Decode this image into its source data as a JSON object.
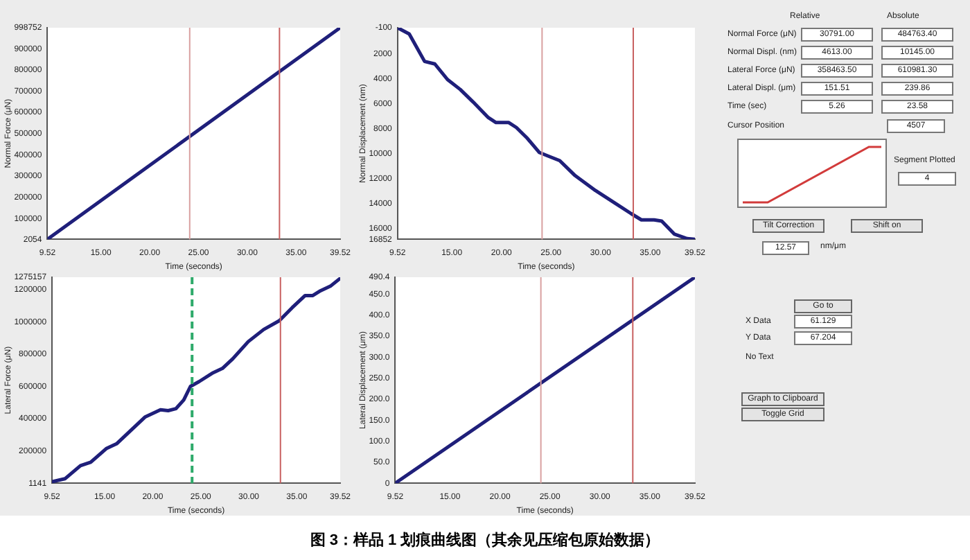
{
  "chart_data": [
    {
      "type": "line",
      "xlabel": "Time (seconds)",
      "ylabel": "Normal Force (μN)",
      "x": [
        9.52,
        39.52
      ],
      "series": [
        {
          "color": "#1f1f7a",
          "values": [
            2054,
            998752
          ]
        }
      ],
      "xlim": [
        9.52,
        39.52
      ],
      "xticks": [
        {
          "value": 9.52,
          "label": "9.52"
        },
        {
          "value": 15,
          "label": "15.00"
        },
        {
          "value": 20,
          "label": "20.00"
        },
        {
          "value": 25,
          "label": "25.00"
        },
        {
          "value": 30,
          "label": "30.00"
        },
        {
          "value": 35,
          "label": "35.00"
        },
        {
          "value": 39.52,
          "label": "39.52"
        }
      ],
      "ylim": [
        2054,
        998752
      ],
      "yticks": [
        2054,
        100000,
        200000,
        300000,
        400000,
        500000,
        600000,
        700000,
        800000,
        900000,
        998752
      ],
      "ref_lines": [
        {
          "axis": "x",
          "value": 24.1,
          "color": "#d9a0a0"
        },
        {
          "axis": "x",
          "value": 33.3,
          "color": "#c86060"
        }
      ],
      "grid": false,
      "legend": false,
      "marker": "none",
      "line_style": "solid"
    },
    {
      "type": "line",
      "xlabel": "Time (seconds)",
      "ylabel": "Normal Displacement (nm)",
      "x": [
        9.52,
        10.7,
        12.25,
        13.28,
        14.56,
        15.85,
        17.14,
        18.68,
        19.45,
        20.74,
        21.51,
        22.54,
        23.83,
        24.6,
        25.88,
        27.43,
        29.49,
        31.54,
        33.09,
        34.12,
        35.4,
        36.17,
        37.46,
        38.74,
        39.52
      ],
      "series": [
        {
          "color": "#1f1f7a",
          "values": [
            -100,
            400,
            2600,
            2800,
            4050,
            4850,
            5850,
            7100,
            7500,
            7500,
            7900,
            8700,
            9900,
            10150,
            10550,
            11750,
            12950,
            14000,
            14800,
            15300,
            15300,
            15400,
            16450,
            16800,
            16852
          ]
        }
      ],
      "xlim": [
        9.52,
        39.52
      ],
      "xticks": [
        {
          "value": 9.52,
          "label": "9.52"
        },
        {
          "value": 15,
          "label": "15.00"
        },
        {
          "value": 20,
          "label": "20.00"
        },
        {
          "value": 25,
          "label": "25.00"
        },
        {
          "value": 30,
          "label": "30.00"
        },
        {
          "value": 35,
          "label": "35.00"
        },
        {
          "value": 39.52,
          "label": "39.52"
        }
      ],
      "ylim": [
        16852,
        -100
      ],
      "yticks": [
        -100,
        2000,
        4000,
        6000,
        8000,
        10000,
        12000,
        14000,
        16000,
        16852
      ],
      "ref_lines": [
        {
          "axis": "x",
          "value": 24.1,
          "color": "#d9a0a0"
        },
        {
          "axis": "x",
          "value": 33.3,
          "color": "#c86060"
        }
      ],
      "grid": false,
      "legend": false,
      "marker": "none",
      "line_style": "solid"
    },
    {
      "type": "line",
      "xlabel": "Time (seconds)",
      "ylabel": "Lateral Force (μN)",
      "x": [
        9.52,
        10.86,
        12.48,
        13.55,
        15.16,
        16.24,
        17.58,
        19.19,
        20.81,
        21.61,
        22.42,
        23.23,
        23.93,
        24.84,
        26.19,
        27.26,
        28.34,
        29.95,
        31.56,
        33.18,
        34.52,
        35.87,
        36.67,
        37.48,
        38.55,
        39.52
      ],
      "series": [
        {
          "color": "#1f1f7a",
          "values": [
            10500,
            28600,
            110000,
            131000,
            215000,
            245000,
            320000,
            410000,
            455000,
            450000,
            462000,
            516000,
            600000,
            630000,
            681000,
            711000,
            771000,
            877000,
            952000,
            1006000,
            1087000,
            1162000,
            1162000,
            1192000,
            1222000,
            1268000
          ]
        }
      ],
      "xlim": [
        9.52,
        39.52
      ],
      "xticks": [
        {
          "value": 9.52,
          "label": "9.52"
        },
        {
          "value": 15,
          "label": "15.00"
        },
        {
          "value": 20,
          "label": "20.00"
        },
        {
          "value": 25,
          "label": "25.00"
        },
        {
          "value": 30,
          "label": "30.00"
        },
        {
          "value": 35,
          "label": "35.00"
        },
        {
          "value": 39.52,
          "label": "39.52"
        }
      ],
      "ylim": [
        1141,
        1275157
      ],
      "yticks": [
        1141,
        200000,
        400000,
        600000,
        800000,
        1000000,
        1200000,
        1275157
      ],
      "ref_lines": [
        {
          "axis": "x",
          "value": 24.1,
          "color": "#2eaa6a",
          "line_style": "dashed"
        },
        {
          "axis": "x",
          "value": 33.3,
          "color": "#c86060"
        }
      ],
      "grid": false,
      "legend": false,
      "marker": "none",
      "line_style": "solid"
    },
    {
      "type": "line",
      "xlabel": "Time (seconds)",
      "ylabel": "Lateral Displacement (μm)",
      "x": [
        9.52,
        39.52
      ],
      "series": [
        {
          "color": "#1f1f7a",
          "values": [
            0,
            490.4
          ]
        }
      ],
      "xlim": [
        9.52,
        39.52
      ],
      "xticks": [
        {
          "value": 9.52,
          "label": "9.52"
        },
        {
          "value": 15,
          "label": "15.00"
        },
        {
          "value": 20,
          "label": "20.00"
        },
        {
          "value": 25,
          "label": "25.00"
        },
        {
          "value": 30,
          "label": "30.00"
        },
        {
          "value": 35,
          "label": "35.00"
        },
        {
          "value": 39.52,
          "label": "39.52"
        }
      ],
      "ylim": [
        0,
        490.4
      ],
      "yticks": [
        0,
        {
          "value": 50,
          "label": "50.0"
        },
        {
          "value": 100,
          "label": "100.0"
        },
        {
          "value": 150,
          "label": "150.0"
        },
        {
          "value": 200,
          "label": "200.0"
        },
        {
          "value": 250,
          "label": "250.0"
        },
        {
          "value": 300,
          "label": "300.0"
        },
        {
          "value": 350,
          "label": "350.0"
        },
        {
          "value": 400,
          "label": "400.0"
        },
        {
          "value": 450,
          "label": "450.0"
        },
        {
          "value": 490.4,
          "label": "490.4"
        }
      ],
      "ref_lines": [
        {
          "axis": "x",
          "value": 24.1,
          "color": "#d9a0a0"
        },
        {
          "axis": "x",
          "value": 33.3,
          "color": "#c86060"
        }
      ],
      "grid": false,
      "legend": false,
      "marker": "none",
      "line_style": "solid"
    },
    {
      "type": "other",
      "title": "图 3：样品 1 划痕曲线图（其余见压缩包原始数据）",
      "annotations": [
        "Relative",
        "Absolute",
        "Normal Force (μN)",
        "30791.00",
        "484763.40",
        "Normal Displ. (nm)",
        "4613.00",
        "10145.00",
        "Lateral Force (μN)",
        "358463.50",
        "610981.30",
        "Lateral Displ. (μm)",
        "151.51",
        "239.86",
        "Time (sec)",
        "5.26",
        "23.58",
        "Cursor Position",
        "4507",
        "Segment Plotted",
        "4",
        "Tilt Correction",
        "Shift on",
        "12.57",
        "nm/μm",
        "Go to",
        "X Data",
        "61.129",
        "Y Data",
        "67.204",
        "No Text",
        "Graph to Clipboard",
        "Toggle Grid"
      ]
    }
  ]
}
